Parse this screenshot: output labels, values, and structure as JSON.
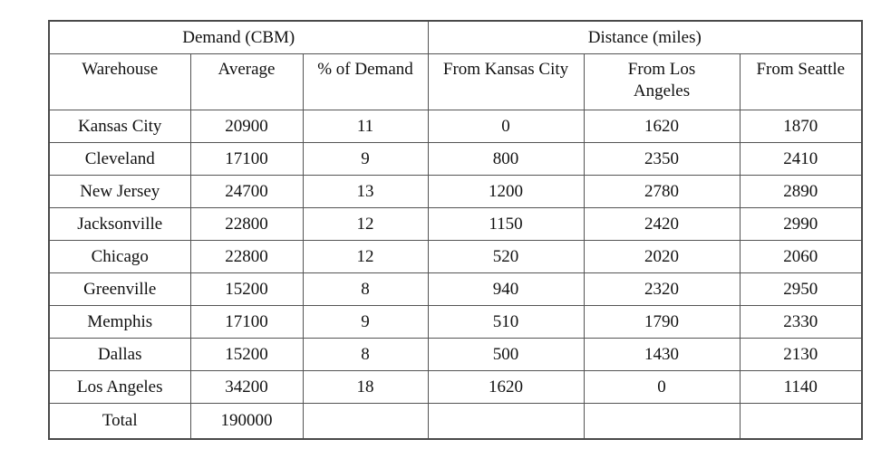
{
  "table": {
    "column_groups": [
      {
        "label": "Demand (CBM)",
        "span": 3
      },
      {
        "label": "Distance (miles)",
        "span": 3
      }
    ],
    "columns": [
      "Warehouse",
      "Average",
      "% of Demand",
      "From Kansas City",
      "From Los Angeles",
      "From Seattle"
    ],
    "rows": [
      [
        "Kansas City",
        "20900",
        "11",
        "0",
        "1620",
        "1870"
      ],
      [
        "Cleveland",
        "17100",
        "9",
        "800",
        "2350",
        "2410"
      ],
      [
        "New Jersey",
        "24700",
        "13",
        "1200",
        "2780",
        "2890"
      ],
      [
        "Jacksonville",
        "22800",
        "12",
        "1150",
        "2420",
        "2990"
      ],
      [
        "Chicago",
        "22800",
        "12",
        "520",
        "2020",
        "2060"
      ],
      [
        "Greenville",
        "15200",
        "8",
        "940",
        "2320",
        "2950"
      ],
      [
        "Memphis",
        "17100",
        "9",
        "510",
        "1790",
        "2330"
      ],
      [
        "Dallas",
        "15200",
        "8",
        "500",
        "1430",
        "2130"
      ],
      [
        "Los Angeles",
        "34200",
        "18",
        "1620",
        "0",
        "1140"
      ]
    ],
    "total_row": [
      "Total",
      "190000",
      "",
      "",
      "",
      ""
    ]
  },
  "colors": {
    "background": "#ffffff",
    "text": "#111111",
    "border": "#545454"
  }
}
